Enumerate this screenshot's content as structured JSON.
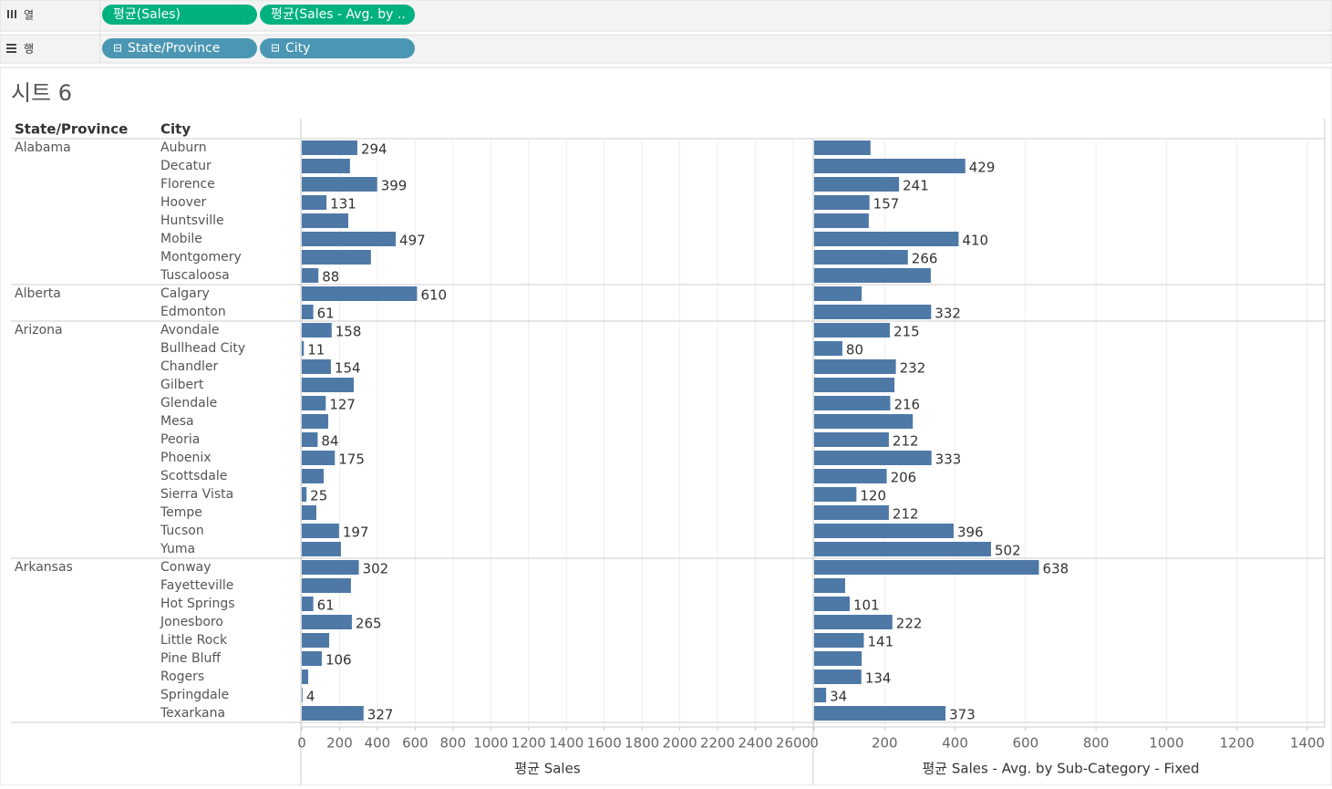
{
  "shelves": {
    "columns": {
      "label": "열",
      "pills": [
        "평균(Sales)",
        "평균(Sales - Avg. by .."
      ]
    },
    "rows": {
      "label": "행",
      "pills": [
        "State/Province",
        "City"
      ]
    }
  },
  "sheet_title": "시트 6",
  "chart_data": {
    "type": "bar",
    "row_headers": [
      "State/Province",
      "City"
    ],
    "groups": [
      "Alabama",
      null,
      null,
      null,
      null,
      null,
      null,
      null,
      "Alberta",
      null,
      "Arizona",
      null,
      null,
      null,
      null,
      null,
      null,
      null,
      null,
      null,
      null,
      null,
      null,
      "Arkansas",
      null,
      null,
      null,
      null,
      null,
      null,
      null,
      null
    ],
    "categories": [
      "Auburn",
      "Decatur",
      "Florence",
      "Hoover",
      "Huntsville",
      "Mobile",
      "Montgomery",
      "Tuscaloosa",
      "Calgary",
      "Edmonton",
      "Avondale",
      "Bullhead City",
      "Chandler",
      "Gilbert",
      "Glendale",
      "Mesa",
      "Peoria",
      "Phoenix",
      "Scottsdale",
      "Sierra Vista",
      "Tempe",
      "Tucson",
      "Yuma",
      "Conway",
      "Fayetteville",
      "Hot Springs",
      "Jonesboro",
      "Little Rock",
      "Pine Bluff",
      "Rogers",
      "Springdale",
      "Texarkana"
    ],
    "series": [
      {
        "name": "평균 Sales",
        "color": "#4e79a7",
        "xlim": [
          0,
          2600
        ],
        "xticks": [
          0,
          200,
          400,
          600,
          800,
          1000,
          1200,
          1400,
          1600,
          1800,
          2000,
          2200,
          2400,
          2600
        ],
        "values": [
          294,
          255,
          399,
          131,
          246,
          497,
          366,
          88,
          610,
          61,
          158,
          11,
          154,
          275,
          127,
          140,
          84,
          175,
          116,
          25,
          77,
          197,
          207,
          302,
          260,
          61,
          265,
          145,
          106,
          34,
          4,
          327
        ],
        "value_labels": [
          "294",
          null,
          "399",
          "131",
          null,
          "497",
          null,
          "88",
          "610",
          "61",
          "158",
          "11",
          "154",
          null,
          "127",
          null,
          "84",
          "175",
          null,
          "25",
          null,
          "197",
          null,
          "302",
          null,
          "61",
          "265",
          null,
          "106",
          null,
          "4",
          "327"
        ]
      },
      {
        "name": "평균 Sales - Avg. by Sub-Category - Fixed",
        "color": "#4e79a7",
        "xlim": [
          0,
          1400
        ],
        "xticks": [
          0,
          200,
          400,
          600,
          800,
          1000,
          1200,
          1400
        ],
        "values": [
          160,
          429,
          241,
          157,
          155,
          410,
          266,
          331,
          135,
          332,
          215,
          80,
          232,
          228,
          216,
          280,
          212,
          333,
          206,
          120,
          212,
          396,
          502,
          638,
          88,
          101,
          222,
          141,
          135,
          134,
          34,
          373
        ],
        "value_labels": [
          null,
          "429",
          "241",
          "157",
          null,
          "410",
          "266",
          null,
          null,
          "332",
          "215",
          "80",
          "232",
          null,
          "216",
          null,
          "212",
          "333",
          "206",
          "120",
          "212",
          "396",
          "502",
          "638",
          null,
          "101",
          "222",
          "141",
          null,
          "134",
          "34",
          "373"
        ]
      }
    ]
  }
}
